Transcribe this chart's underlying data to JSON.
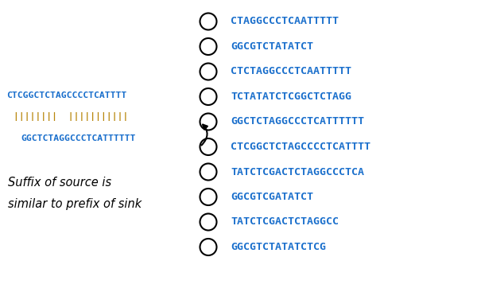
{
  "nodes": [
    "CTAGGCCCTCAATTTTT",
    "GGCGTCTATATCT",
    "CTCTAGGCCCTCAATTTTT",
    "TCTATATCTCGGCTCTAGG",
    "GGCTCTAGGCCCTCATTTTTT",
    "CTCGGCTCTAGCCCCTCATTTT",
    "TATCTCGACTCTAGGCCCTCA",
    "GGCGTCGATATCT",
    "TATCTCGACTCTAGGCC",
    "GGCGTCTATATCTCG"
  ],
  "node_color": "black",
  "text_color": "#1a6fcc",
  "alignment_seq1": "CTCGGCTCTAGCCCCTCATTTT",
  "alignment_seq2": "GGCTCTAGGCCCTCATTTTTT",
  "pipes": "||||||||  |||||||||||",
  "pipe_color": "#b8860b",
  "arrow_source_idx": 5,
  "arrow_sink_idx": 4,
  "label_text1": "Suffix of source is",
  "label_text2": "similar to prefix of sink",
  "label_color": "black",
  "bg_color": "white"
}
